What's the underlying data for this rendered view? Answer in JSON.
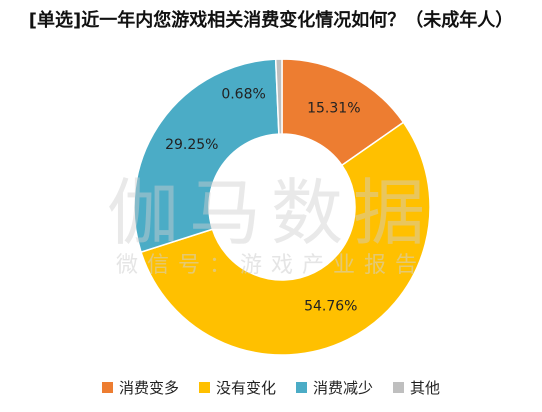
{
  "chart_data": {
    "type": "pie",
    "title": "[单选]近一年内您游戏相关消费变化情况如何？（未成年人）",
    "categories": [
      "消费变多",
      "没有变化",
      "消费减少",
      "其他"
    ],
    "values": [
      15.31,
      54.76,
      29.25,
      0.68
    ],
    "value_labels": [
      "15.31%",
      "54.76%",
      "29.25%",
      "0.68%"
    ],
    "colors": [
      "#ED7D31",
      "#FFC000",
      "#4BACC6",
      "#BFBFBF"
    ],
    "donut": true,
    "legend": "bottom"
  },
  "watermark": {
    "main": "伽马数据",
    "sub": "微信号：游戏产业报告"
  }
}
